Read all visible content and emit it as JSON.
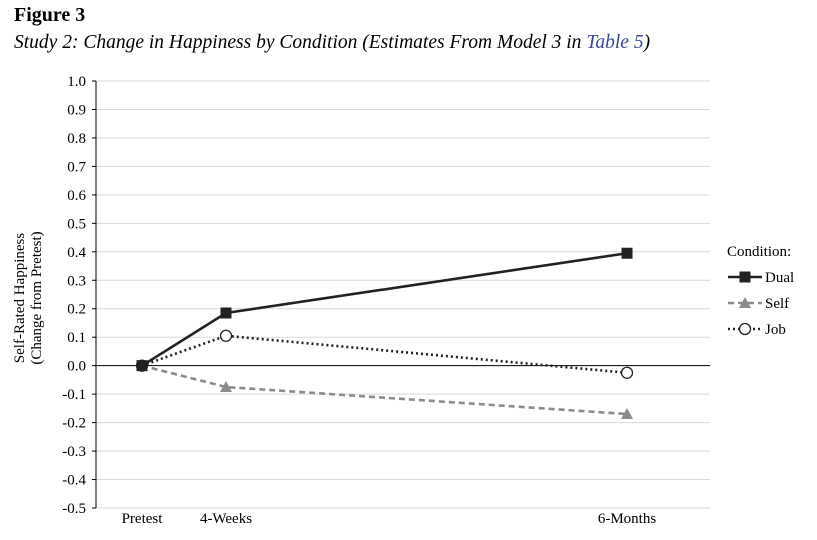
{
  "figure": {
    "label": "Figure 3",
    "caption_main": "Study 2: Change in Happiness by Condition (Estimates From Model 3 in ",
    "caption_link": "Table 5",
    "caption_end": ")"
  },
  "colors": {
    "dual": "#222222",
    "self": "#8c8c8c",
    "job": "#222222",
    "gridline": "#d9d9d9",
    "zeroline": "#000000",
    "link": "#3a4a9a"
  },
  "chart_data": {
    "type": "line",
    "x": [
      "Pretest",
      "4-Weeks",
      "6-Months"
    ],
    "x_positions_weeks": [
      0,
      4,
      26
    ],
    "ylabel_line1": "Self-Rated Happiness",
    "ylabel_line2": "(Change from Pretest)",
    "ylim": [
      -0.5,
      1.0
    ],
    "yticks": [
      "1.0",
      "0.9",
      "0.8",
      "0.7",
      "0.6",
      "0.5",
      "0.4",
      "0.3",
      "0.2",
      "0.1",
      "0.0",
      "-0.1",
      "-0.2",
      "-0.3",
      "-0.4",
      "-0.5"
    ],
    "grid": true,
    "legend_title": "Condition:",
    "legend_position": "right",
    "series": [
      {
        "name": "Dual",
        "values": [
          0.0,
          0.185,
          0.395
        ],
        "style": "solid",
        "marker": "square-filled"
      },
      {
        "name": "Self",
        "values": [
          0.0,
          -0.075,
          -0.17
        ],
        "style": "dashed",
        "marker": "triangle-filled"
      },
      {
        "name": "Job",
        "values": [
          0.0,
          0.105,
          -0.025
        ],
        "style": "dotted",
        "marker": "circle-open"
      }
    ]
  }
}
